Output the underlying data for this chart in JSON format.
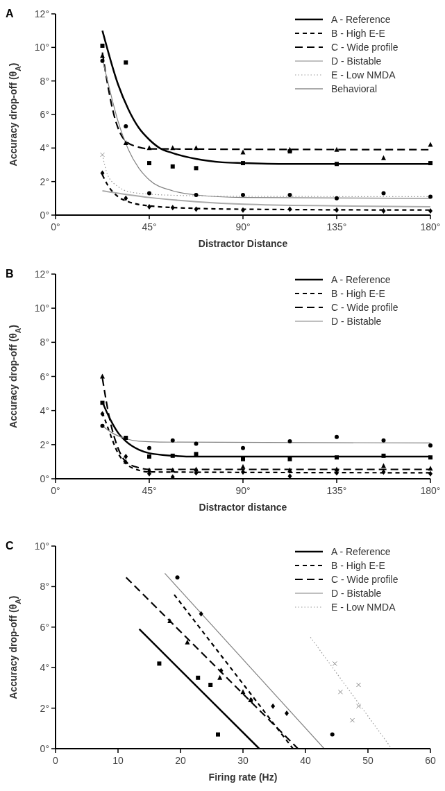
{
  "chart_data": [
    {
      "type": "line",
      "title": "A",
      "xlabel": "Distractor Distance",
      "ylabel": "Accuracy drop-off (θ$_{A}$)",
      "xlim": [
        0,
        180
      ],
      "xticks": [
        {
          "value": 0,
          "label": "0°"
        },
        {
          "value": 45,
          "label": "45°"
        },
        {
          "value": 90,
          "label": "90°"
        },
        {
          "value": 135,
          "label": "135°"
        },
        {
          "value": 180,
          "label": "180°"
        }
      ],
      "ylim": [
        0,
        12
      ],
      "yticks": [
        {
          "value": 0,
          "label": "0°"
        },
        {
          "value": 2,
          "label": "2°"
        },
        {
          "value": 4,
          "label": "4°"
        },
        {
          "value": 6,
          "label": "6°"
        },
        {
          "value": 8,
          "label": "8°"
        },
        {
          "value": 10,
          "label": "10°"
        },
        {
          "value": 12,
          "label": "12°"
        }
      ],
      "legend": "top right",
      "series": [
        {
          "name": "A - Reference",
          "color": "#000000",
          "line_style": "solid",
          "x": [
            22.5,
            30,
            35,
            40,
            45,
            50,
            56.25,
            67.5,
            80,
            90,
            112.5,
            180
          ],
          "values": [
            11,
            7.8,
            6.3,
            5.2,
            4.5,
            4.0,
            3.7,
            3.35,
            3.15,
            3.1,
            3.05,
            3.05
          ]
        },
        {
          "name": "B - High E-E",
          "color": "#000000",
          "line_style": "dashed",
          "x": [
            22.5,
            25,
            30,
            35,
            45,
            67.5,
            90,
            180
          ],
          "values": [
            2.4,
            1.8,
            1.1,
            0.8,
            0.55,
            0.4,
            0.35,
            0.3
          ]
        },
        {
          "name": "C - Wide profile",
          "color": "#000000",
          "line_style": "dashed",
          "x": [
            22.5,
            25,
            28,
            31,
            33.75,
            40,
            45,
            180
          ],
          "values": [
            9.7,
            7.8,
            6.0,
            4.9,
            4.4,
            4.05,
            3.95,
            3.9
          ]
        },
        {
          "name": "D - Bistable",
          "color": "#808080",
          "line_style": "solid",
          "x": [
            22.5,
            25,
            30,
            35,
            40,
            45,
            56.25,
            67.5,
            90,
            180
          ],
          "values": [
            9.3,
            8.0,
            5.6,
            3.9,
            2.8,
            2.1,
            1.45,
            1.2,
            1.05,
            1.0
          ]
        },
        {
          "name": "E - Low NMDA",
          "color": "#999999",
          "line_style": "dotted",
          "x": [
            22.5,
            25,
            30,
            35,
            45,
            67.5,
            90,
            180
          ],
          "values": [
            3.6,
            2.4,
            1.7,
            1.4,
            1.25,
            1.15,
            1.12,
            1.1
          ]
        },
        {
          "name": "Behavioral",
          "color": "#aaaaaa",
          "line_style": "solid",
          "x": [
            22.5,
            45,
            67.5,
            90,
            135,
            180
          ],
          "values": [
            1.45,
            1.05,
            0.8,
            0.65,
            0.55,
            0.5
          ]
        },
        {
          "type": "scatter",
          "marker": "square",
          "color": "#000000",
          "x": [
            22.5,
            33.75,
            45,
            56.25,
            67.5,
            90,
            112.5,
            135,
            180
          ],
          "values": [
            10.1,
            9.1,
            3.1,
            2.9,
            2.8,
            3.1,
            3.8,
            3.05,
            3.1
          ]
        },
        {
          "type": "scatter",
          "marker": "diamond",
          "color": "#000000",
          "x": [
            22.5,
            33.75,
            45,
            56.25,
            67.5,
            90,
            112.5,
            135,
            157.5,
            180
          ],
          "values": [
            2.5,
            1.0,
            0.5,
            0.45,
            0.35,
            0.3,
            0.35,
            0.3,
            0.25,
            0.25
          ]
        },
        {
          "type": "scatter",
          "marker": "triangle",
          "color": "#000000",
          "x": [
            22.5,
            33.75,
            45,
            56.25,
            67.5,
            90,
            112.5,
            135,
            157.5,
            180
          ],
          "values": [
            9.5,
            4.3,
            4.0,
            4.0,
            4.0,
            3.75,
            3.9,
            3.9,
            3.4,
            4.2
          ]
        },
        {
          "type": "scatter",
          "marker": "circle",
          "color": "#000000",
          "x": [
            22.5,
            33.75,
            45,
            67.5,
            90,
            112.5,
            135,
            157.5,
            180
          ],
          "values": [
            9.2,
            5.3,
            1.3,
            1.2,
            1.2,
            1.2,
            1.0,
            1.3,
            1.1
          ]
        },
        {
          "type": "scatter",
          "marker": "cross",
          "color": "#999999",
          "x": [
            22.5
          ],
          "values": [
            3.6
          ]
        }
      ]
    },
    {
      "type": "line",
      "title": "B",
      "xlabel": "Distractor distance",
      "ylabel": "Accuracy drop-off (θ$_{A}$)",
      "xlim": [
        0,
        180
      ],
      "xticks": [
        {
          "value": 0,
          "label": "0°"
        },
        {
          "value": 45,
          "label": "45°"
        },
        {
          "value": 90,
          "label": "90°"
        },
        {
          "value": 135,
          "label": "135°"
        },
        {
          "value": 180,
          "label": "180°"
        }
      ],
      "ylim": [
        0,
        12
      ],
      "yticks": [
        {
          "value": 0,
          "label": "0°"
        },
        {
          "value": 2,
          "label": "2°"
        },
        {
          "value": 4,
          "label": "4°"
        },
        {
          "value": 6,
          "label": "6°"
        },
        {
          "value": 8,
          "label": "8°"
        },
        {
          "value": 10,
          "label": "10°"
        },
        {
          "value": 12,
          "label": "12°"
        }
      ],
      "legend": "top right",
      "series": [
        {
          "name": "A - Reference",
          "color": "#000000",
          "line_style": "solid",
          "x": [
            22.5,
            25,
            30,
            33.75,
            40,
            45,
            56.25,
            67.5,
            180
          ],
          "values": [
            4.5,
            3.8,
            2.7,
            2.2,
            1.7,
            1.5,
            1.35,
            1.3,
            1.3
          ]
        },
        {
          "name": "B - High E-E",
          "color": "#000000",
          "line_style": "dashed",
          "x": [
            22.5,
            26,
            30,
            33.75,
            40,
            45,
            180
          ],
          "values": [
            3.9,
            2.7,
            1.5,
            0.9,
            0.5,
            0.4,
            0.35
          ]
        },
        {
          "name": "C - Wide profile",
          "color": "#000000",
          "line_style": "dashed",
          "x": [
            22.5,
            26,
            30,
            33.75,
            40,
            45,
            180
          ],
          "values": [
            5.9,
            3.5,
            1.8,
            1.0,
            0.65,
            0.55,
            0.55
          ]
        },
        {
          "name": "D - Bistable",
          "color": "#808080",
          "line_style": "solid",
          "x": [
            22.5,
            27,
            33.75,
            40,
            50,
            180
          ],
          "values": [
            3.1,
            2.7,
            2.35,
            2.2,
            2.15,
            2.1
          ]
        },
        {
          "type": "scatter",
          "marker": "square",
          "color": "#000000",
          "x": [
            22.5,
            33.75,
            45,
            56.25,
            67.5,
            90,
            112.5,
            135,
            157.5,
            180
          ],
          "values": [
            4.45,
            2.4,
            1.3,
            1.35,
            1.45,
            1.15,
            1.15,
            1.25,
            1.35,
            1.25
          ]
        },
        {
          "type": "scatter",
          "marker": "diamond",
          "color": "#000000",
          "x": [
            22.5,
            33.75,
            45,
            56.25,
            67.5,
            90,
            112.5,
            135,
            157.5,
            180
          ],
          "values": [
            3.8,
            1.3,
            0.3,
            0.1,
            0.35,
            0.4,
            0.15,
            0.35,
            0.4,
            0.3
          ]
        },
        {
          "type": "scatter",
          "marker": "triangle",
          "color": "#000000",
          "x": [
            22.5,
            33.75,
            45,
            56.25,
            67.5,
            90,
            112.5,
            135,
            157.5,
            180
          ],
          "values": [
            6.0,
            1.0,
            0.5,
            0.5,
            0.55,
            0.7,
            0.5,
            0.55,
            0.75,
            0.6
          ]
        },
        {
          "type": "scatter",
          "marker": "circle",
          "color": "#000000",
          "x": [
            22.5,
            45,
            56.25,
            67.5,
            90,
            112.5,
            135,
            157.5,
            180
          ],
          "values": [
            3.1,
            1.8,
            2.25,
            2.05,
            1.8,
            2.2,
            2.45,
            2.25,
            1.95
          ]
        }
      ]
    },
    {
      "type": "line",
      "title": "C",
      "xlabel": "Firing rate (Hz)",
      "ylabel": "Accuracy drop-off (θ$_{A}$)",
      "xlim": [
        0,
        60
      ],
      "xticks": [
        0,
        10,
        20,
        30,
        40,
        50,
        60
      ],
      "ylim": [
        0,
        10
      ],
      "yticks": [
        {
          "value": 0,
          "label": "0°"
        },
        {
          "value": 2,
          "label": "2°"
        },
        {
          "value": 4,
          "label": "4°"
        },
        {
          "value": 6,
          "label": "6°"
        },
        {
          "value": 8,
          "label": "8°"
        },
        {
          "value": 10,
          "label": "10°"
        }
      ],
      "legend": "top right",
      "series": [
        {
          "name": "A - Reference",
          "color": "#000000",
          "line_style": "solid",
          "x": [
            13.4,
            32.6
          ],
          "values": [
            5.9,
            0
          ]
        },
        {
          "name": "B - High E-E",
          "color": "#000000",
          "line_style": "dashed",
          "x": [
            19.0,
            38.0
          ],
          "values": [
            7.6,
            0
          ]
        },
        {
          "name": "C - Wide profile",
          "color": "#000000",
          "line_style": "dashed",
          "x": [
            11.3,
            38.8
          ],
          "values": [
            8.45,
            0
          ]
        },
        {
          "name": "D - Bistable",
          "color": "#808080",
          "line_style": "solid",
          "x": [
            17.5,
            43.0
          ],
          "values": [
            8.65,
            0
          ]
        },
        {
          "name": "E - Low NMDA",
          "color": "#999999",
          "line_style": "dotted",
          "x": [
            40.8,
            53.8
          ],
          "values": [
            5.5,
            0
          ]
        },
        {
          "type": "scatter",
          "marker": "square",
          "color": "#000000",
          "x": [
            16.6,
            22.8,
            24.8,
            26.0
          ],
          "values": [
            4.2,
            3.5,
            3.15,
            0.7
          ]
        },
        {
          "type": "scatter",
          "marker": "diamond",
          "color": "#000000",
          "x": [
            23.3,
            26.5,
            31.3,
            34.8,
            37.0
          ],
          "values": [
            6.65,
            3.85,
            2.4,
            2.1,
            1.75
          ]
        },
        {
          "type": "scatter",
          "marker": "triangle",
          "color": "#000000",
          "x": [
            18.3,
            21.1,
            26.3,
            30.0,
            31.2
          ],
          "values": [
            6.3,
            5.25,
            3.5,
            2.8,
            2.4
          ]
        },
        {
          "type": "scatter",
          "marker": "circle",
          "color": "#000000",
          "x": [
            19.5,
            44.3
          ],
          "values": [
            8.45,
            0.7
          ]
        },
        {
          "type": "scatter",
          "marker": "cross",
          "color": "#808080",
          "x": [
            44.7,
            48.5,
            45.6,
            48.5,
            47.5
          ],
          "values": [
            4.2,
            3.15,
            2.8,
            2.1,
            1.4
          ]
        }
      ]
    }
  ]
}
